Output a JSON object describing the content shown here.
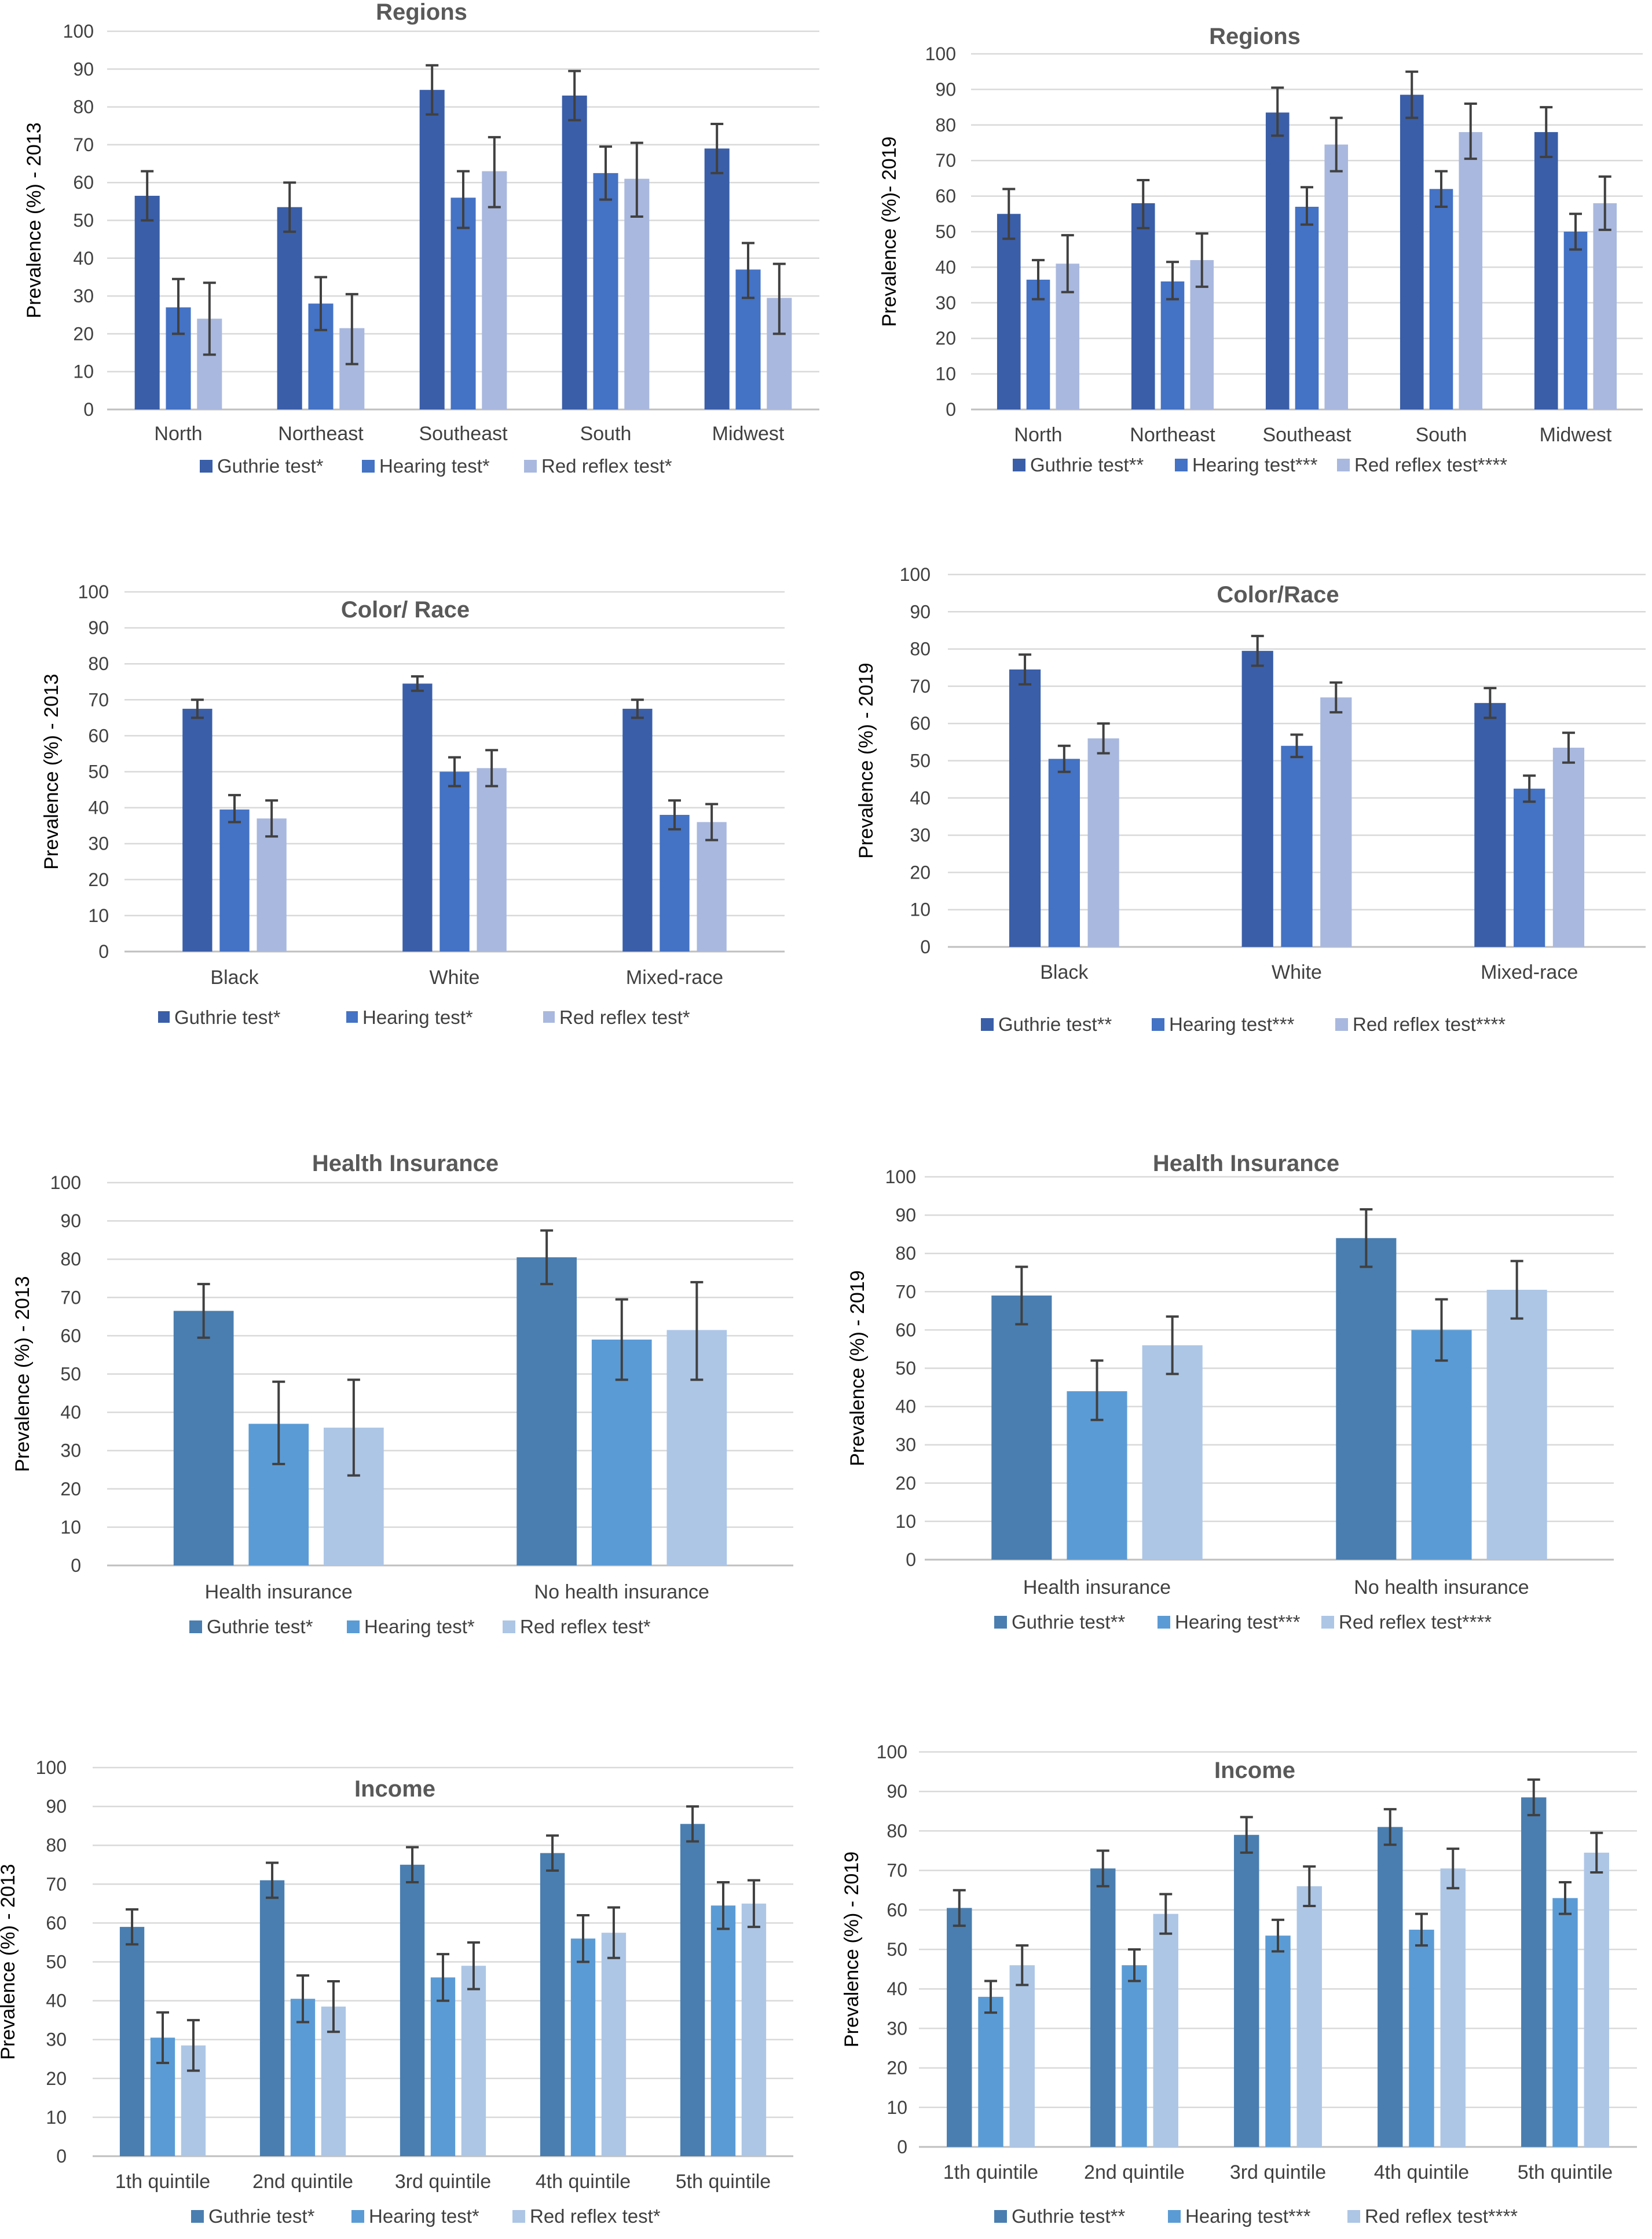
{
  "chart_data": [
    {
      "id": "regions_2013",
      "type": "bar",
      "title": "Regions",
      "ylabel": "Prevalence (%) - 2013",
      "xlabel": "",
      "ylim": [
        0,
        100
      ],
      "yticks": [
        0,
        10,
        20,
        30,
        40,
        50,
        60,
        70,
        80,
        90,
        100
      ],
      "grid": true,
      "legend": "bottom",
      "categories": [
        "North",
        "Northeast",
        "Southeast",
        "South",
        "Midwest"
      ],
      "colors": [
        "#3a5ea8",
        "#4472c4",
        "#a9b8de"
      ],
      "series": [
        {
          "name": "Guthrie test*",
          "values": [
            56.5,
            53.5,
            84.5,
            83,
            69
          ],
          "err_low": [
            50,
            47,
            78,
            76.5,
            62.5
          ],
          "err_high": [
            63,
            60,
            91,
            89.5,
            75.5
          ]
        },
        {
          "name": "Hearing test*",
          "values": [
            27,
            28,
            56,
            62.5,
            37
          ],
          "err_low": [
            20,
            21,
            48,
            55.5,
            29.5
          ],
          "err_high": [
            34.5,
            35,
            63,
            69.5,
            44
          ]
        },
        {
          "name": "Red reflex test*",
          "values": [
            24,
            21.5,
            63,
            61,
            29.5
          ],
          "err_low": [
            14.5,
            12,
            53.5,
            51,
            20
          ],
          "err_high": [
            33.5,
            30.5,
            72,
            70.5,
            38.5
          ]
        }
      ]
    },
    {
      "id": "regions_2019",
      "type": "bar",
      "title": "Regions",
      "ylabel": "Prevalence (%)- 2019",
      "xlabel": "",
      "ylim": [
        0,
        100
      ],
      "yticks": [
        0,
        10,
        20,
        30,
        40,
        50,
        60,
        70,
        80,
        90,
        100
      ],
      "grid": true,
      "legend": "bottom",
      "categories": [
        "North",
        "Northeast",
        "Southeast",
        "South",
        "Midwest"
      ],
      "colors": [
        "#3a5ea8",
        "#4472c4",
        "#a9b8de"
      ],
      "series": [
        {
          "name": "Guthrie test**",
          "values": [
            55,
            58,
            83.5,
            88.5,
            78
          ],
          "err_low": [
            48,
            51,
            77,
            82,
            71
          ],
          "err_high": [
            62,
            64.5,
            90.5,
            95,
            85
          ]
        },
        {
          "name": "Hearing test***",
          "values": [
            36.5,
            36,
            57,
            62,
            50
          ],
          "err_low": [
            31,
            31,
            52,
            57,
            45
          ],
          "err_high": [
            42,
            41.5,
            62.5,
            67,
            55
          ]
        },
        {
          "name": "Red reflex test****",
          "values": [
            41,
            42,
            74.5,
            78,
            58
          ],
          "err_low": [
            33,
            34.5,
            67,
            70.5,
            50.5
          ],
          "err_high": [
            49,
            49.5,
            82,
            86,
            65.5
          ]
        }
      ]
    },
    {
      "id": "race_2013",
      "type": "bar",
      "title": "Color/ Race",
      "ylabel": "Prevalence (%) - 2013",
      "xlabel": "",
      "ylim": [
        0,
        100
      ],
      "yticks": [
        0,
        10,
        20,
        30,
        40,
        50,
        60,
        70,
        80,
        90,
        100
      ],
      "grid": true,
      "legend": "bottom",
      "categories": [
        "Black",
        "White",
        "Mixed-race"
      ],
      "colors": [
        "#3a5ea8",
        "#4472c4",
        "#a9b8de"
      ],
      "series": [
        {
          "name": "Guthrie test*",
          "values": [
            67.5,
            74.5,
            67.5
          ],
          "err_low": [
            65,
            72.5,
            65
          ],
          "err_high": [
            70,
            76.5,
            70
          ]
        },
        {
          "name": "Hearing test*",
          "values": [
            39.5,
            50,
            38
          ],
          "err_low": [
            36,
            46,
            34
          ],
          "err_high": [
            43.5,
            54,
            42
          ]
        },
        {
          "name": "Red reflex test*",
          "values": [
            37,
            51,
            36
          ],
          "err_low": [
            32,
            46,
            31
          ],
          "err_high": [
            42,
            56,
            41
          ]
        }
      ]
    },
    {
      "id": "race_2019",
      "type": "bar",
      "title": "Color/Race",
      "ylabel": "Prevalence (%) - 2019",
      "xlabel": "",
      "ylim": [
        0,
        100
      ],
      "yticks": [
        0,
        10,
        20,
        30,
        40,
        50,
        60,
        70,
        80,
        90,
        100
      ],
      "grid": true,
      "legend": "bottom",
      "categories": [
        "Black",
        "White",
        "Mixed-race"
      ],
      "colors": [
        "#3a5ea8",
        "#4472c4",
        "#a9b8de"
      ],
      "series": [
        {
          "name": "Guthrie test**",
          "values": [
            74.5,
            79.5,
            65.5
          ],
          "err_low": [
            70.5,
            75.5,
            61.5
          ],
          "err_high": [
            78.5,
            83.5,
            69.5
          ]
        },
        {
          "name": "Hearing test***",
          "values": [
            50.5,
            54,
            42.5
          ],
          "err_low": [
            47,
            51,
            39
          ],
          "err_high": [
            54,
            57,
            46
          ]
        },
        {
          "name": "Red reflex test****",
          "values": [
            56,
            67,
            53.5
          ],
          "err_low": [
            52,
            63,
            49.5
          ],
          "err_high": [
            60,
            71,
            57.5
          ]
        }
      ]
    },
    {
      "id": "insurance_2013",
      "type": "bar",
      "title": "Health Insurance",
      "ylabel": "Prevalence (%) - 2013",
      "xlabel": "",
      "ylim": [
        0,
        100
      ],
      "yticks": [
        0,
        10,
        20,
        30,
        40,
        50,
        60,
        70,
        80,
        90,
        100
      ],
      "grid": true,
      "legend": "bottom",
      "categories": [
        "Health insurance",
        "No health insurance"
      ],
      "colors": [
        "#4a7eb0",
        "#5b9bd5",
        "#adc6e6"
      ],
      "series": [
        {
          "name": "Guthrie test*",
          "values": [
            66.5,
            80.5
          ],
          "err_low": [
            59.5,
            73.5
          ],
          "err_high": [
            73.5,
            87.5
          ]
        },
        {
          "name": "Hearing test*",
          "values": [
            37,
            59
          ],
          "err_low": [
            26.5,
            48.5
          ],
          "err_high": [
            48,
            69.5
          ]
        },
        {
          "name": "Red reflex test*",
          "values": [
            36,
            61.5
          ],
          "err_low": [
            23.5,
            48.5
          ],
          "err_high": [
            48.5,
            74
          ]
        }
      ]
    },
    {
      "id": "insurance_2019",
      "type": "bar",
      "title": "Health Insurance",
      "ylabel": "Prevalence (%) - 2019",
      "xlabel": "",
      "ylim": [
        0,
        100
      ],
      "yticks": [
        0,
        10,
        20,
        30,
        40,
        50,
        60,
        70,
        80,
        90,
        100
      ],
      "grid": true,
      "legend": "bottom",
      "categories": [
        "Health insurance",
        "No health insurance"
      ],
      "colors": [
        "#4a7eb0",
        "#5b9bd5",
        "#adc6e6"
      ],
      "series": [
        {
          "name": "Guthrie test**",
          "values": [
            69,
            84
          ],
          "err_low": [
            61.5,
            76.5
          ],
          "err_high": [
            76.5,
            91.5
          ]
        },
        {
          "name": "Hearing test***",
          "values": [
            44,
            60
          ],
          "err_low": [
            36.5,
            52
          ],
          "err_high": [
            52,
            68
          ]
        },
        {
          "name": "Red reflex test****",
          "values": [
            56,
            70.5
          ],
          "err_low": [
            48.5,
            63
          ],
          "err_high": [
            63.5,
            78
          ]
        }
      ]
    },
    {
      "id": "income_2013",
      "type": "bar",
      "title": "Income",
      "ylabel": "Prevalence (%) - 2013",
      "xlabel": "",
      "ylim": [
        0,
        100
      ],
      "yticks": [
        0,
        10,
        20,
        30,
        40,
        50,
        60,
        70,
        80,
        90,
        100
      ],
      "grid": true,
      "legend": "bottom",
      "categories": [
        "1th quintile",
        "2nd quintile",
        "3rd quintile",
        "4th quintile",
        "5th quintile"
      ],
      "colors": [
        "#4a7eb0",
        "#5b9bd5",
        "#adc6e6"
      ],
      "series": [
        {
          "name": "Guthrie test*",
          "values": [
            59,
            71,
            75,
            78,
            85.5
          ],
          "err_low": [
            54.5,
            66.5,
            70.5,
            73.5,
            81
          ],
          "err_high": [
            63.5,
            75.5,
            79.5,
            82.5,
            90
          ]
        },
        {
          "name": "Hearing test*",
          "values": [
            30.5,
            40.5,
            46,
            56,
            64.5
          ],
          "err_low": [
            24,
            34.5,
            40,
            50,
            58.5
          ],
          "err_high": [
            37,
            46.5,
            52,
            62,
            70.5
          ]
        },
        {
          "name": "Red reflex test*",
          "values": [
            28.5,
            38.5,
            49,
            57.5,
            65
          ],
          "err_low": [
            22,
            32,
            43,
            51,
            59
          ],
          "err_high": [
            35,
            45,
            55,
            64,
            71
          ]
        }
      ]
    },
    {
      "id": "income_2019",
      "type": "bar",
      "title": "Income",
      "ylabel": "Prevalence (%) - 2019",
      "xlabel": "",
      "ylim": [
        0,
        100
      ],
      "yticks": [
        0,
        10,
        20,
        30,
        40,
        50,
        60,
        70,
        80,
        90,
        100
      ],
      "grid": true,
      "legend": "bottom",
      "categories": [
        "1th  quintile",
        "2nd quintile",
        "3rd quintile",
        "4th quintile",
        "5th quintile"
      ],
      "colors": [
        "#4a7eb0",
        "#5b9bd5",
        "#adc6e6"
      ],
      "series": [
        {
          "name": "Guthrie test**",
          "values": [
            60.5,
            70.5,
            79,
            81,
            88.5
          ],
          "err_low": [
            56,
            66,
            74.5,
            76.5,
            84
          ],
          "err_high": [
            65,
            75,
            83.5,
            85.5,
            93
          ]
        },
        {
          "name": "Hearing test***",
          "values": [
            38,
            46,
            53.5,
            55,
            63
          ],
          "err_low": [
            34,
            42,
            49.5,
            51,
            59
          ],
          "err_high": [
            42,
            50,
            57.5,
            59,
            67
          ]
        },
        {
          "name": "Red reflex test****",
          "values": [
            46,
            59,
            66,
            70.5,
            74.5
          ],
          "err_low": [
            41,
            54,
            61,
            65.5,
            69.5
          ],
          "err_high": [
            51,
            64,
            71,
            75.5,
            79.5
          ]
        }
      ]
    }
  ]
}
